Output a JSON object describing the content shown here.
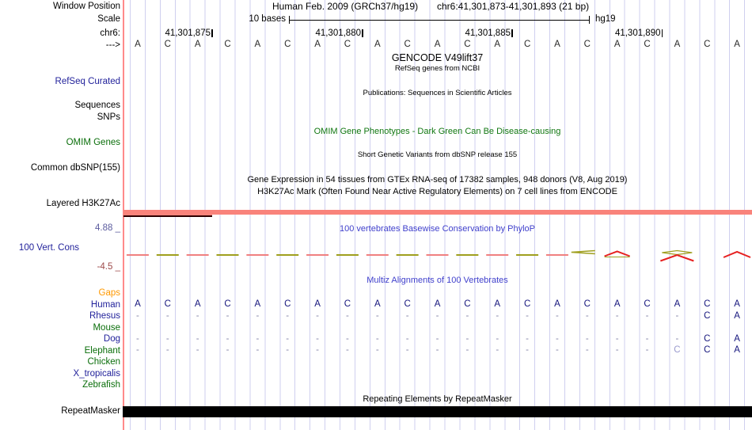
{
  "header": {
    "assembly_title": "Human Feb. 2009 (GRCh37/hg19)",
    "window_position": "chr6:41,301,873-41,301,893 (21 bp)",
    "scale_value": "10 bases",
    "assembly_short": "hg19",
    "coordinate_ticks": [
      "41,301,875",
      "41,301,880",
      "41,301,885",
      "41,301,890"
    ]
  },
  "left_labels": [
    {
      "id": "window-position",
      "text": "Window Position",
      "color": "#000000",
      "interactable": false
    },
    {
      "id": "scale",
      "text": "Scale",
      "color": "#000000",
      "interactable": false
    },
    {
      "id": "chrom",
      "text": "chr6:",
      "color": "#000000",
      "interactable": false
    },
    {
      "id": "direction",
      "text": "--->",
      "color": "#000000",
      "interactable": false
    },
    {
      "id": "refseq-curated",
      "text": "RefSeq Curated",
      "color": "#22229b",
      "interactable": true
    },
    {
      "id": "sequences",
      "text": "Sequences",
      "color": "#000000",
      "interactable": true
    },
    {
      "id": "snps",
      "text": "SNPs",
      "color": "#000000",
      "interactable": true
    },
    {
      "id": "omim-genes",
      "text": "OMIM Genes",
      "color": "#0a6e0a",
      "interactable": true
    },
    {
      "id": "common-dbsnp",
      "text": "Common dbSNP(155)",
      "color": "#000000",
      "interactable": true
    },
    {
      "id": "layered-h3k27ac",
      "text": "Layered H3K27Ac",
      "color": "#000000",
      "interactable": true
    },
    {
      "id": "cons-max",
      "text": "4.88 _",
      "color": "#5b5b9e",
      "interactable": false
    },
    {
      "id": "vert-cons",
      "text": "100 Vert. Cons",
      "color": "#22229b",
      "interactable": true
    },
    {
      "id": "cons-min",
      "text": "-4.5 _",
      "color": "#9e4a4a",
      "interactable": false
    },
    {
      "id": "repeatmasker",
      "text": "RepeatMasker",
      "color": "#000000",
      "interactable": true
    }
  ],
  "center_titles": [
    {
      "id": "gencode",
      "text": "GENCODE V49lift37",
      "color": "#000000"
    },
    {
      "id": "refseq-ncbi",
      "text": "RefSeq genes from NCBI",
      "color": "#000000"
    },
    {
      "id": "publications",
      "text": "Publications: Sequences in Scientific Articles",
      "color": "#000000"
    },
    {
      "id": "omim-phenotypes",
      "text": "OMIM Gene Phenotypes - Dark Green Can Be Disease-causing",
      "color": "#117711"
    },
    {
      "id": "dbsnp-release",
      "text": "Short Genetic Variants from dbSNP release 155",
      "color": "#000000"
    },
    {
      "id": "gtex",
      "text": "Gene Expression in 54 tissues from GTEx RNA-seq of 17382 samples, 948 donors (V8, Aug 2019)",
      "color": "#000000"
    },
    {
      "id": "h3k27ac-desc",
      "text": "H3K27Ac Mark (Often Found Near Active Regulatory Elements) on 7 cell lines from ENCODE",
      "color": "#000000"
    },
    {
      "id": "phylop",
      "text": "100 vertebrates Basewise Conservation by PhyloP",
      "color": "#4040cc"
    },
    {
      "id": "multiz-title",
      "text": "Multiz Alignments of 100 Vertebrates",
      "color": "#4040cc"
    },
    {
      "id": "repeat-title",
      "text": "Repeating Elements by RepeatMasker",
      "color": "#000000"
    }
  ],
  "sequence_row": {
    "bases": [
      "A",
      "C",
      "A",
      "C",
      "A",
      "C",
      "A",
      "C",
      "A",
      "C",
      "A",
      "C",
      "A",
      "C",
      "A",
      "C",
      "A",
      "C",
      "A",
      "C",
      "A"
    ]
  },
  "multiz": {
    "rows": [
      {
        "id": "gaps",
        "label": "Gaps",
        "label_color": "#ff9900",
        "cells": [
          "",
          "",
          "",
          "",
          "",
          "",
          "",
          "",
          "",
          "",
          "",
          "",
          "",
          "",
          "",
          "",
          "",
          "",
          "",
          "",
          ""
        ]
      },
      {
        "id": "human",
        "label": "Human",
        "label_color": "#22229b",
        "cells": [
          "A",
          "C",
          "A",
          "C",
          "A",
          "C",
          "A",
          "C",
          "A",
          "C",
          "A",
          "C",
          "A",
          "C",
          "A",
          "C",
          "A",
          "C",
          "A",
          "C",
          "A"
        ]
      },
      {
        "id": "rhesus",
        "label": "Rhesus",
        "label_color": "#22229b",
        "cells": [
          "-",
          "-",
          "-",
          "-",
          "-",
          "-",
          "-",
          "-",
          "-",
          "-",
          "-",
          "-",
          "-",
          "-",
          "-",
          "-",
          "-",
          "-",
          "-",
          "C",
          "A"
        ]
      },
      {
        "id": "mouse",
        "label": "Mouse",
        "label_color": "#0a6e0a",
        "cells": [
          "",
          "",
          "",
          "",
          "",
          "",
          "",
          "",
          "",
          "",
          "",
          "",
          "",
          "",
          "",
          "",
          "",
          "",
          "",
          "",
          ""
        ]
      },
      {
        "id": "dog",
        "label": "Dog",
        "label_color": "#22229b",
        "cells": [
          "-",
          "-",
          "-",
          "-",
          "-",
          "-",
          "-",
          "-",
          "-",
          "-",
          "-",
          "-",
          "-",
          "-",
          "-",
          "-",
          "-",
          "-",
          "-",
          "C",
          "A"
        ]
      },
      {
        "id": "elephant",
        "label": "Elephant",
        "label_color": "#0a6e0a",
        "cells": [
          "-",
          "-",
          "-",
          "-",
          "-",
          "-",
          "-",
          "-",
          "-",
          "-",
          "-",
          "-",
          "-",
          "-",
          "-",
          "-",
          "-",
          "-",
          "C",
          "C",
          "A"
        ],
        "muted": [
          18
        ]
      },
      {
        "id": "chicken",
        "label": "Chicken",
        "label_color": "#0a6e0a",
        "cells": [
          "",
          "",
          "",
          "",
          "",
          "",
          "",
          "",
          "",
          "",
          "",
          "",
          "",
          "",
          "",
          "",
          "",
          "",
          "",
          "",
          ""
        ]
      },
      {
        "id": "x-tropicalis",
        "label": "X_tropicalis",
        "label_color": "#22229b",
        "cells": [
          "",
          "",
          "",
          "",
          "",
          "",
          "",
          "",
          "",
          "",
          "",
          "",
          "",
          "",
          "",
          "",
          "",
          "",
          "",
          "",
          ""
        ]
      },
      {
        "id": "zebrafish",
        "label": "Zebrafish",
        "label_color": "#0a6e0a",
        "cells": [
          "",
          "",
          "",
          "",
          "",
          "",
          "",
          "",
          "",
          "",
          "",
          "",
          "",
          "",
          "",
          "",
          "",
          "",
          "",
          "",
          ""
        ]
      }
    ]
  },
  "conservation": {
    "ylim": [
      -4.5,
      4.88
    ],
    "palette": {
      "salmon": "#f08080",
      "olive": "#9f9f1e",
      "red": "#e62020"
    },
    "marks": [
      {
        "col": 1,
        "shape": "dash",
        "color": "salmon"
      },
      {
        "col": 2,
        "shape": "dash",
        "color": "olive"
      },
      {
        "col": 3,
        "shape": "dash",
        "color": "salmon"
      },
      {
        "col": 4,
        "shape": "dash",
        "color": "olive"
      },
      {
        "col": 5,
        "shape": "dash",
        "color": "salmon"
      },
      {
        "col": 6,
        "shape": "dash",
        "color": "olive"
      },
      {
        "col": 7,
        "shape": "dash",
        "color": "salmon"
      },
      {
        "col": 8,
        "shape": "dash",
        "color": "olive"
      },
      {
        "col": 9,
        "shape": "dash",
        "color": "salmon"
      },
      {
        "col": 10,
        "shape": "dash",
        "color": "olive"
      },
      {
        "col": 11,
        "shape": "dash",
        "color": "salmon"
      },
      {
        "col": 12,
        "shape": "dash",
        "color": "olive"
      },
      {
        "col": 13,
        "shape": "dash",
        "color": "salmon"
      },
      {
        "col": 14,
        "shape": "dash",
        "color": "olive"
      },
      {
        "col": 15,
        "shape": "dash",
        "color": "salmon"
      },
      {
        "col": 16,
        "shape": "arrow-left",
        "color": "olive"
      },
      {
        "col": 17,
        "shape": "peak-low",
        "color": "red"
      },
      {
        "col": 19,
        "shape": "lens-peak",
        "color": "red"
      },
      {
        "col": 21,
        "shape": "peak",
        "color": "red"
      }
    ]
  },
  "bars": {
    "h3k27ac_color": "#f9837b",
    "h3k27ac_dark_edge": "#2e0000",
    "repeatmasker_color": "#000000"
  },
  "grid": {
    "line_color": "#cfcfef",
    "window_edge_color": "#ff8a8a"
  }
}
